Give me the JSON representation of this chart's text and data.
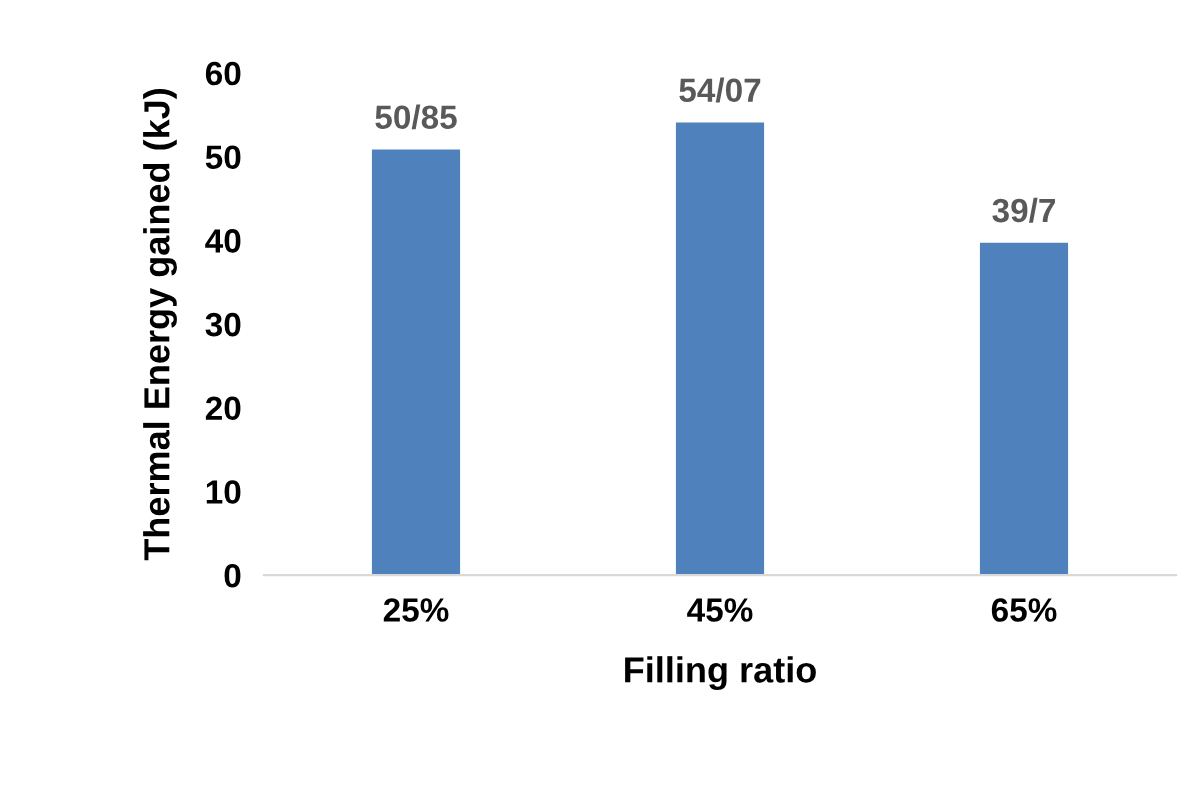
{
  "chart_data": {
    "type": "bar",
    "xlabel": "Filling ratio",
    "ylabel": "Thermal Energy gained (kJ)",
    "categories": [
      "25%",
      "45%",
      "65%"
    ],
    "values": [
      50.85,
      54.07,
      39.7
    ],
    "value_labels": [
      "50/85",
      "54/07",
      "39/7"
    ],
    "color": "#4f81bd",
    "ylim": [
      0,
      60
    ],
    "yticks": [
      0,
      10,
      20,
      30,
      40,
      50,
      60
    ],
    "grid": false,
    "legend": false
  }
}
